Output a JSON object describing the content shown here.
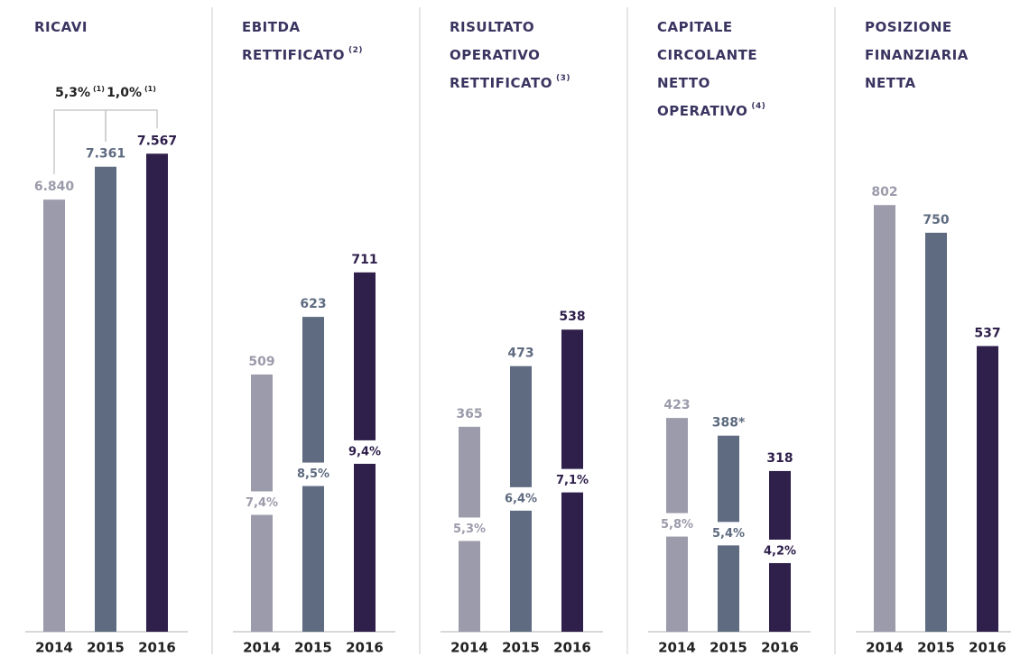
{
  "chart_data": [
    {
      "type": "bar",
      "title_lines": [
        "RICAVI"
      ],
      "categories": [
        "2014",
        "2015",
        "2016"
      ],
      "values": [
        6840,
        7361,
        7567
      ],
      "value_labels": [
        "6.840",
        "7.361",
        "7.567"
      ],
      "colors": [
        "#9b9bab",
        "#5e6b80",
        "#2e1f4b"
      ],
      "ylim": [
        0,
        8000
      ],
      "growth": [
        {
          "label": "5,3%",
          "note": "(1)"
        },
        {
          "label": "1,0%",
          "note": "(1)"
        }
      ]
    },
    {
      "type": "bar",
      "title_lines": [
        "EBITDA",
        "RETTIFICATO"
      ],
      "title_note": "(2)",
      "categories": [
        "2014",
        "2015",
        "2016"
      ],
      "values": [
        509,
        623,
        711
      ],
      "value_labels": [
        "509",
        "623",
        "711"
      ],
      "colors": [
        "#9b9bab",
        "#5e6b80",
        "#2e1f4b"
      ],
      "ylim": [
        0,
        1000
      ],
      "margin_labels": [
        "7,4%",
        "8,5%",
        "9,4%"
      ]
    },
    {
      "type": "bar",
      "title_lines": [
        "RISULTATO",
        "OPERATIVO",
        "RETTIFICATO"
      ],
      "title_note": "(3)",
      "categories": [
        "2014",
        "2015",
        "2016"
      ],
      "values": [
        365,
        473,
        538
      ],
      "value_labels": [
        "365",
        "473",
        "538"
      ],
      "colors": [
        "#9b9bab",
        "#5e6b80",
        "#2e1f4b"
      ],
      "ylim": [
        0,
        900
      ],
      "margin_labels": [
        "5,3%",
        "6,4%",
        "7,1%"
      ]
    },
    {
      "type": "bar",
      "title_lines": [
        "CAPITALE",
        "CIRCOLANTE",
        "NETTO",
        "OPERATIVO"
      ],
      "title_note": "(4)",
      "categories": [
        "2014",
        "2015",
        "2016"
      ],
      "values": [
        423,
        388,
        318
      ],
      "value_labels": [
        "423",
        "388*",
        "318"
      ],
      "colors": [
        "#9b9bab",
        "#5e6b80",
        "#2e1f4b"
      ],
      "ylim": [
        0,
        1000
      ],
      "margin_labels": [
        "5,8%",
        "5,4%",
        "4,2%"
      ]
    },
    {
      "type": "bar",
      "title_lines": [
        "POSIZIONE",
        "FINANZIARIA",
        "NETTA"
      ],
      "categories": [
        "2014",
        "2015",
        "2016"
      ],
      "values": [
        802,
        750,
        537
      ],
      "value_labels": [
        "802",
        "750",
        "537"
      ],
      "colors": [
        "#9b9bab",
        "#5e6b80",
        "#2e1f4b"
      ],
      "ylim": [
        0,
        950
      ]
    }
  ]
}
